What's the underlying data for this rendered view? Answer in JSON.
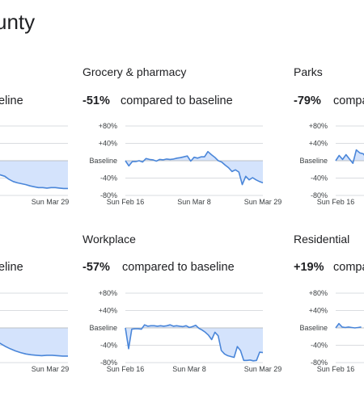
{
  "page": {
    "title_fragment": "unty"
  },
  "panels": [
    {
      "id": "partial-left-1",
      "title": "",
      "change": "",
      "compared": "eline",
      "x_start_label": "",
      "x_end_label": "Sun Mar 29"
    },
    {
      "id": "grocery-pharmacy",
      "title": "Grocery & pharmacy",
      "change": "-51%",
      "compared": "compared to baseline",
      "x_start_label": "Sun Feb 16",
      "x_mid_label": "Sun Mar 8",
      "x_end_label": "Sun Mar 29"
    },
    {
      "id": "parks",
      "title": "Parks",
      "change": "-79%",
      "compared": "compa",
      "x_start_label": "Sun Feb 16"
    },
    {
      "id": "partial-left-2",
      "title": "",
      "change": "",
      "compared": "eline",
      "x_start_label": "",
      "x_end_label": "Sun Mar 29"
    },
    {
      "id": "workplace",
      "title": "Workplace",
      "change": "-57%",
      "compared": "compared to baseline",
      "x_start_label": "Sun Feb 16",
      "x_mid_label": "Sun Mar 8",
      "x_end_label": "Sun Mar 29"
    },
    {
      "id": "residential",
      "title": "Residential",
      "change": "+19%",
      "compared": "compa",
      "x_start_label": "Sun Feb 16"
    }
  ],
  "colors": {
    "line": "#4a86d9",
    "fill": "#d4e3fc",
    "grid": "#dadce0",
    "baseline": "#bdc1c6"
  },
  "chart_data": [
    {
      "type": "area",
      "panel": "partial-left-1",
      "y_ticks": [],
      "ylim": [
        -80,
        80
      ],
      "x_end_label": "Sun Mar 29",
      "values": [
        -10,
        -18,
        -25,
        -30,
        -33,
        -36,
        -43,
        -48,
        -51,
        -53,
        -55,
        -58,
        -60,
        -62,
        -62,
        -63,
        -62,
        -62,
        -63,
        -64,
        -64
      ]
    },
    {
      "type": "area",
      "panel": "grocery-pharmacy",
      "y_ticks": [
        "+80%",
        "+40%",
        "Baseline",
        "-40%",
        "-80%"
      ],
      "ylim": [
        -80,
        80
      ],
      "x_labels": [
        "Sun Feb 16",
        "Sun Mar 8",
        "Sun Mar 29"
      ],
      "values": [
        0,
        -12,
        -2,
        -2,
        0,
        -3,
        5,
        3,
        2,
        -1,
        3,
        2,
        4,
        3,
        4,
        6,
        7,
        9,
        11,
        -1,
        8,
        6,
        9,
        9,
        21,
        14,
        8,
        0,
        -3,
        -10,
        -16,
        -25,
        -21,
        -26,
        -55,
        -36,
        -44,
        -39,
        -44,
        -48,
        -51
      ]
    },
    {
      "type": "area",
      "panel": "parks",
      "y_ticks": [
        "+80%",
        "+40%",
        "Baseline",
        "-40%",
        "-80%"
      ],
      "ylim": [
        -80,
        80
      ],
      "x_labels": [
        "Sun Feb 16"
      ],
      "values": [
        0,
        12,
        3,
        14,
        4,
        -6,
        25,
        18,
        16,
        6
      ]
    },
    {
      "type": "area",
      "panel": "partial-left-2",
      "y_ticks": [],
      "ylim": [
        -80,
        80
      ],
      "x_end_label": "Sun Mar 29",
      "values": [
        -10,
        -18,
        -28,
        -35,
        -42,
        -48,
        -53,
        -57,
        -60,
        -62,
        -63,
        -64,
        -63,
        -63,
        -64,
        -65,
        -65
      ]
    },
    {
      "type": "area",
      "panel": "workplace",
      "y_ticks": [
        "+80%",
        "+40%",
        "Baseline",
        "-40%",
        "-80%"
      ],
      "ylim": [
        -80,
        80
      ],
      "x_labels": [
        "Sun Feb 16",
        "Sun Mar 8",
        "Sun Mar 29"
      ],
      "values": [
        0,
        -48,
        -3,
        -2,
        -2,
        -3,
        7,
        4,
        5,
        5,
        4,
        5,
        4,
        5,
        7,
        4,
        5,
        4,
        3,
        5,
        1,
        3,
        6,
        -1,
        -5,
        -10,
        -17,
        -27,
        -10,
        -18,
        -52,
        -60,
        -64,
        -66,
        -68,
        -43,
        -52,
        -75,
        -75,
        -74,
        -76,
        -75,
        -56,
        -57
      ]
    },
    {
      "type": "area",
      "panel": "residential",
      "y_ticks": [
        "+80%",
        "+40%",
        "Baseline",
        "-40%",
        "-80%"
      ],
      "ylim": [
        -80,
        80
      ],
      "x_labels": [
        "Sun Feb 16"
      ],
      "values": [
        0,
        10,
        2,
        1,
        2,
        1,
        0,
        1,
        2
      ]
    }
  ]
}
